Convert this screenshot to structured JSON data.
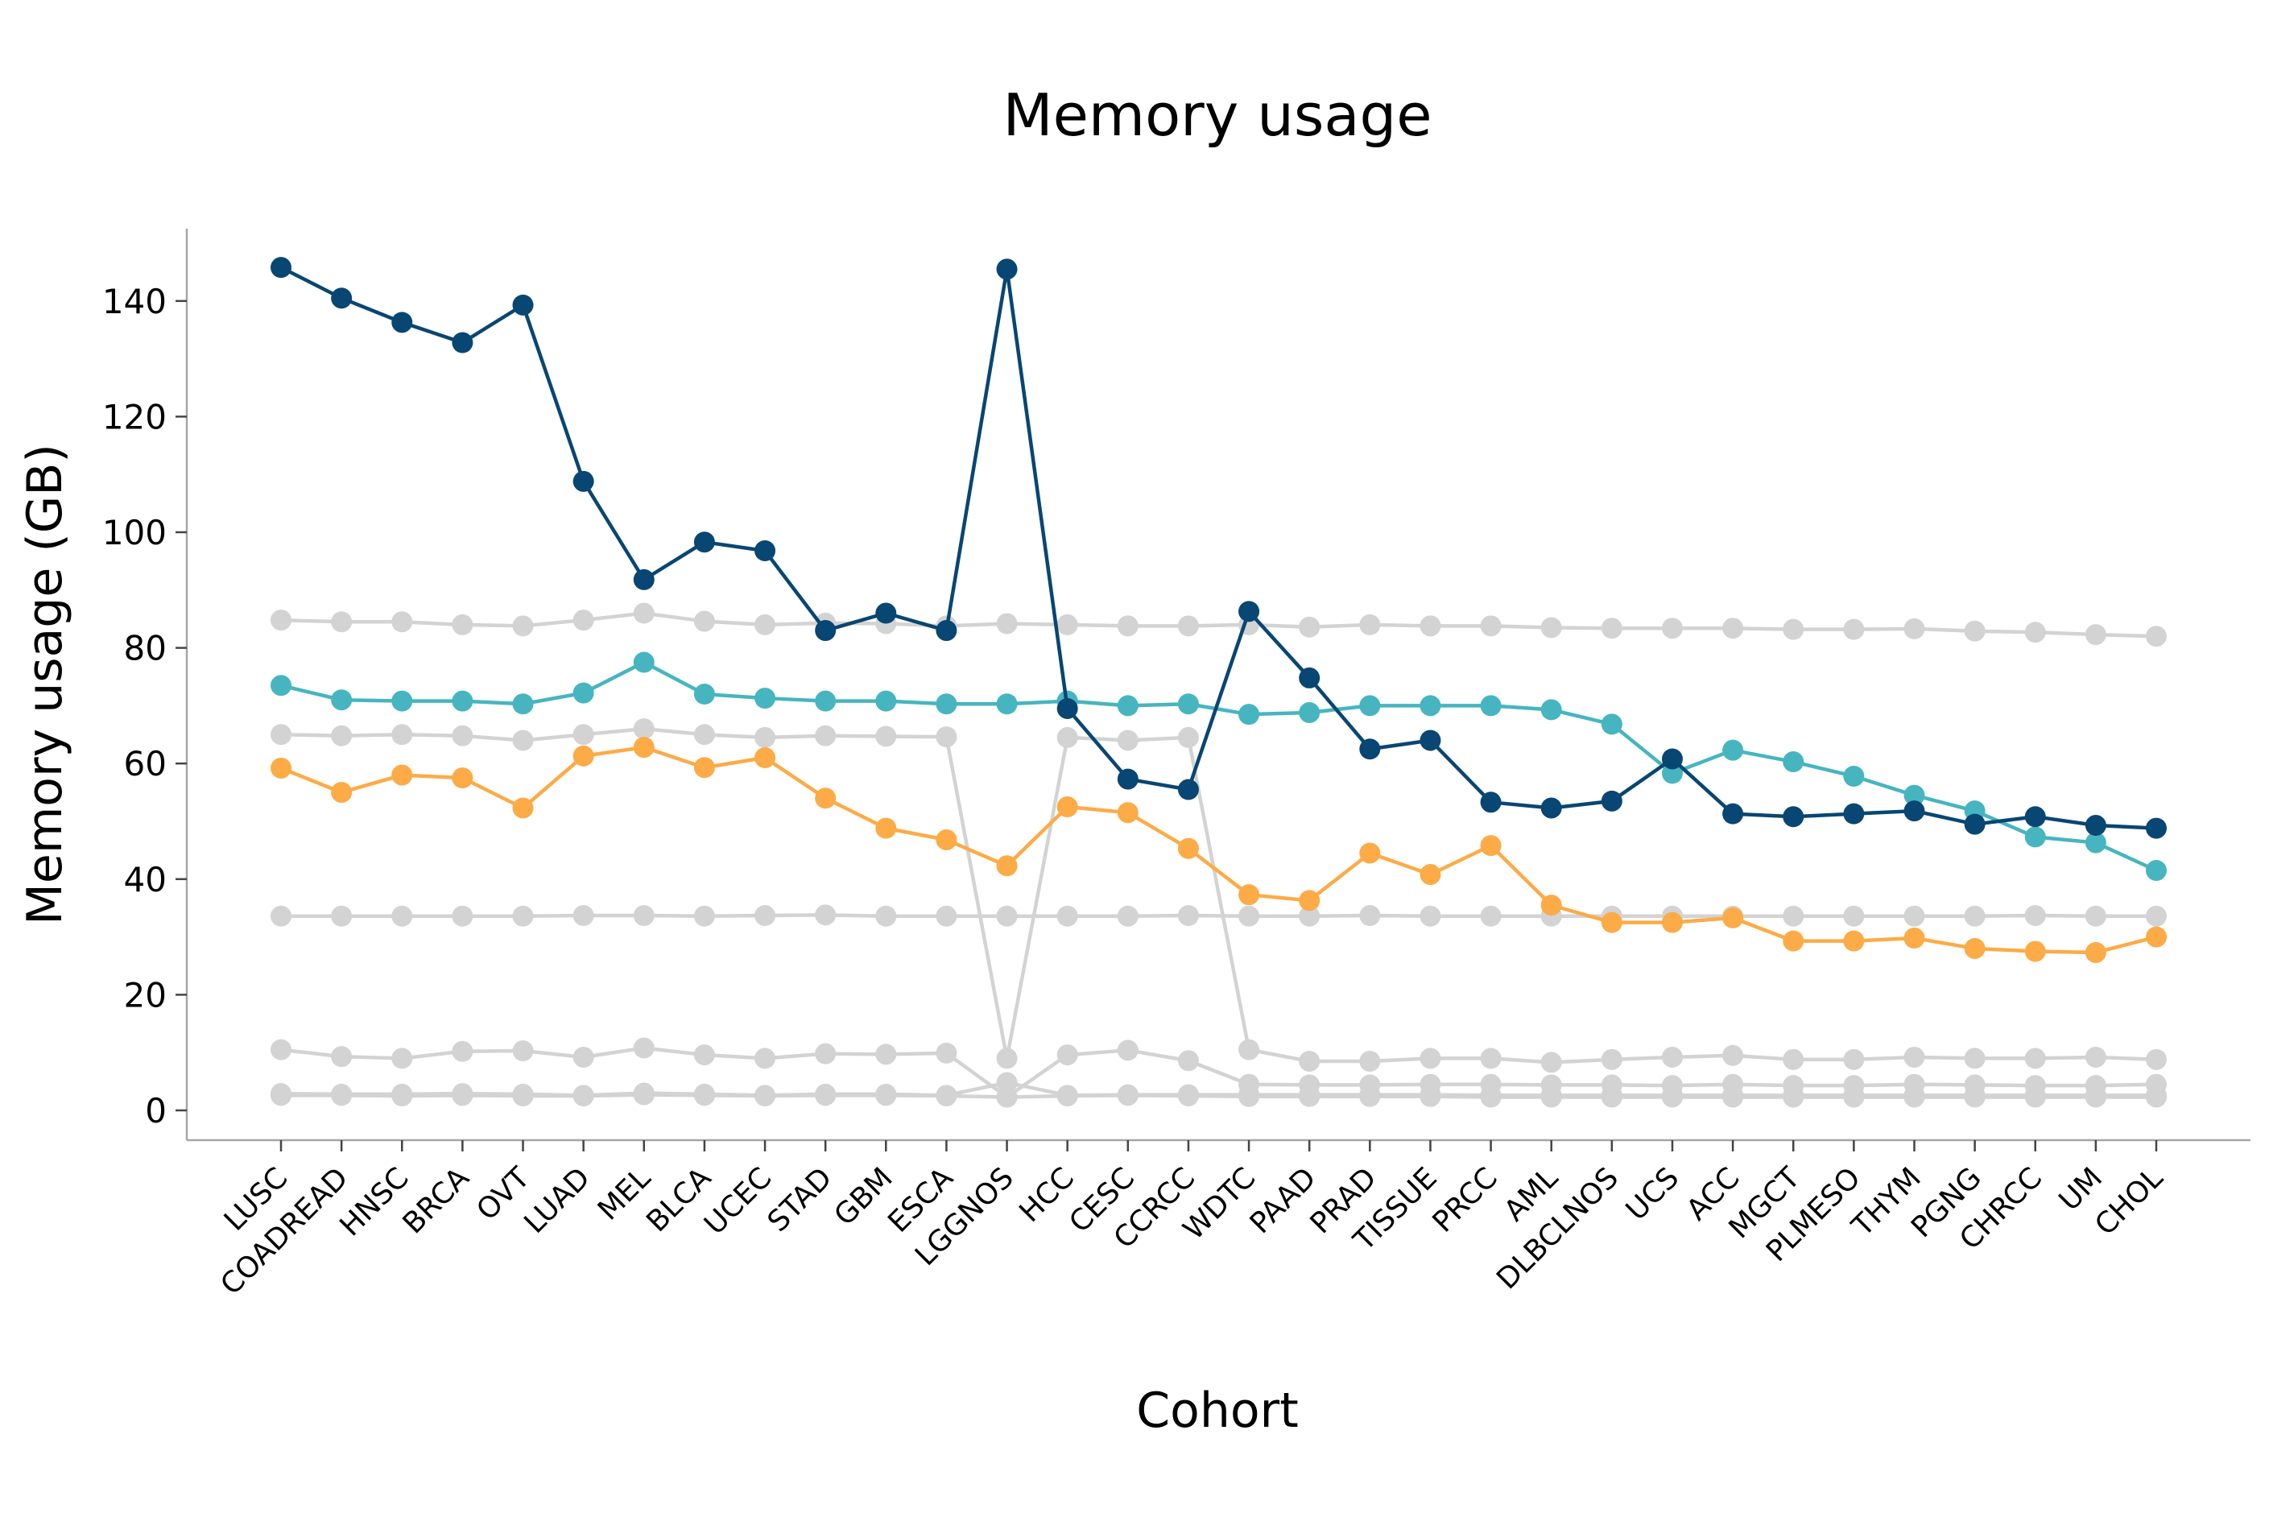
{
  "chart_data": {
    "type": "line",
    "title": "Memory usage",
    "xlabel": "Cohort",
    "ylabel": "Memory usage (GB)",
    "ylim": [
      -5,
      153
    ],
    "yticks": [
      0,
      20,
      40,
      60,
      80,
      100,
      120,
      140
    ],
    "grid": false,
    "legend": false,
    "categories": [
      "LUSC",
      "COADREAD",
      "HNSC",
      "BRCA",
      "OVT",
      "LUAD",
      "MEL",
      "BLCA",
      "UCEC",
      "STAD",
      "GBM",
      "ESCA",
      "LGGNOS",
      "HCC",
      "CESC",
      "CCRCC",
      "WDTC",
      "PAAD",
      "PRAD",
      "TISSUE",
      "PRCC",
      "AML",
      "DLBCLNOS",
      "UCS",
      "ACC",
      "MGCT",
      "PLMESO",
      "THYM",
      "PGNG",
      "CHRCC",
      "UM",
      "CHOL"
    ],
    "series": [
      {
        "color": "#d3d3d3",
        "values": [
          84.8,
          84.5,
          84.5,
          84.0,
          83.8,
          84.8,
          86.0,
          84.6,
          84.0,
          84.3,
          84.2,
          83.8,
          84.2,
          84.0,
          83.8,
          83.8,
          84.0,
          83.6,
          84.0,
          83.8,
          83.8,
          83.5,
          83.4,
          83.4,
          83.4,
          83.2,
          83.2,
          83.3,
          82.9,
          82.7,
          82.3,
          82.0
        ]
      },
      {
        "color": "#d3d3d3",
        "values": [
          65.0,
          64.8,
          65.0,
          64.8,
          64.0,
          65.0,
          66.0,
          65.0,
          64.5,
          64.8,
          64.7,
          64.6,
          9.0,
          64.5,
          64.0,
          64.5,
          10.5,
          8.5,
          8.5,
          9.0,
          9.0,
          8.3,
          8.8,
          9.2,
          9.5,
          8.8,
          8.8,
          9.2,
          9.0,
          9.0,
          9.2,
          8.8
        ]
      },
      {
        "color": "#d3d3d3",
        "values": [
          33.6,
          33.6,
          33.6,
          33.6,
          33.6,
          33.7,
          33.7,
          33.6,
          33.7,
          33.8,
          33.6,
          33.6,
          33.6,
          33.6,
          33.6,
          33.7,
          33.6,
          33.6,
          33.7,
          33.6,
          33.6,
          33.6,
          33.6,
          33.6,
          33.6,
          33.6,
          33.6,
          33.6,
          33.6,
          33.7,
          33.6,
          33.6
        ]
      },
      {
        "color": "#d3d3d3",
        "values": [
          10.5,
          9.3,
          9.0,
          10.2,
          10.3,
          9.2,
          10.8,
          9.6,
          9.0,
          9.8,
          9.7,
          9.9,
          2.3,
          9.6,
          10.4,
          8.6,
          4.5,
          4.4,
          4.4,
          4.5,
          4.5,
          4.4,
          4.4,
          4.3,
          4.5,
          4.3,
          4.3,
          4.5,
          4.4,
          4.3,
          4.3,
          4.5
        ]
      },
      {
        "color": "#d3d3d3",
        "values": [
          2.9,
          2.8,
          2.8,
          2.9,
          2.8,
          2.6,
          3.0,
          2.8,
          2.6,
          2.8,
          2.8,
          2.6,
          4.8,
          2.6,
          2.7,
          2.7,
          2.7,
          2.7,
          2.7,
          2.7,
          2.6,
          2.6,
          2.6,
          2.6,
          2.6,
          2.6,
          2.6,
          2.6,
          2.6,
          2.6,
          2.6,
          2.6
        ]
      },
      {
        "color": "#d3d3d3",
        "values": [
          2.6,
          2.6,
          2.5,
          2.6,
          2.5,
          2.5,
          2.7,
          2.6,
          2.5,
          2.6,
          2.6,
          2.5,
          2.3,
          2.5,
          2.6,
          2.5,
          2.4,
          2.4,
          2.4,
          2.4,
          2.3,
          2.3,
          2.3,
          2.3,
          2.3,
          2.3,
          2.3,
          2.3,
          2.3,
          2.3,
          2.3,
          2.3
        ]
      },
      {
        "color": "#fcab47",
        "values": [
          59.2,
          55.0,
          58.0,
          57.5,
          52.3,
          61.3,
          62.8,
          59.3,
          61.0,
          54.0,
          48.8,
          46.8,
          42.3,
          52.5,
          51.5,
          45.3,
          37.3,
          36.3,
          44.5,
          40.8,
          45.8,
          35.5,
          32.5,
          32.5,
          33.3,
          29.3,
          29.3,
          29.8,
          28.0,
          27.5,
          27.3,
          30.0
        ]
      },
      {
        "color": "#46b5c0",
        "values": [
          73.5,
          71.0,
          70.8,
          70.8,
          70.3,
          72.2,
          77.5,
          72.0,
          71.3,
          70.8,
          70.8,
          70.3,
          70.3,
          70.8,
          70.0,
          70.3,
          68.5,
          68.8,
          70.0,
          70.0,
          70.0,
          69.3,
          66.8,
          58.3,
          62.3,
          60.3,
          57.8,
          54.5,
          51.8,
          47.3,
          46.3,
          41.5
        ]
      },
      {
        "color": "#084673",
        "values": [
          145.8,
          140.5,
          136.3,
          132.8,
          139.3,
          108.8,
          91.8,
          98.3,
          96.8,
          83.0,
          86.0,
          83.0,
          145.5,
          69.5,
          57.3,
          55.5,
          86.3,
          74.8,
          62.5,
          64.0,
          53.3,
          52.3,
          53.5,
          60.8,
          51.3,
          50.8,
          51.3,
          51.8,
          49.5,
          50.8,
          49.3,
          48.8
        ]
      }
    ]
  }
}
